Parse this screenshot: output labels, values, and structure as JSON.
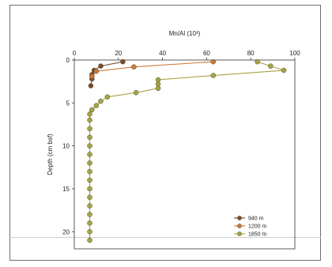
{
  "chart_data": {
    "type": "line",
    "title": "",
    "xlabel": "Mn/Al (10³)",
    "ylabel": "Depth (cm bsf)",
    "xlim": [
      0,
      100
    ],
    "ylim": [
      22,
      0
    ],
    "x_axis_position": "top",
    "y_inverted": true,
    "grid": false,
    "xticks": [
      "0",
      "20",
      "40",
      "60",
      "80",
      "100"
    ],
    "yticks": [
      "0",
      "5",
      "10",
      "15",
      "20"
    ],
    "legend_position": "bottom-right",
    "series": [
      {
        "name": "940 m",
        "color": "#7a4a2a",
        "points": [
          {
            "x": 22,
            "y": 0.2
          },
          {
            "x": 12,
            "y": 0.7
          },
          {
            "x": 9,
            "y": 1.2
          },
          {
            "x": 8,
            "y": 1.7
          },
          {
            "x": 8,
            "y": 2.2
          },
          {
            "x": 7.5,
            "y": 3
          }
        ]
      },
      {
        "name": "1200 m",
        "color": "#cc7a3c",
        "points": [
          {
            "x": 63,
            "y": 0.2
          },
          {
            "x": 27,
            "y": 0.8
          },
          {
            "x": 10,
            "y": 1.3
          },
          {
            "x": 8,
            "y": 1.9
          }
        ]
      },
      {
        "name": "1850 m",
        "color": "#a8a345",
        "points": [
          {
            "x": 83,
            "y": 0.2
          },
          {
            "x": 89,
            "y": 0.7
          },
          {
            "x": 95,
            "y": 1.2
          },
          {
            "x": 63,
            "y": 1.8
          },
          {
            "x": 38,
            "y": 2.3
          },
          {
            "x": 38,
            "y": 2.8
          },
          {
            "x": 38,
            "y": 3.3
          },
          {
            "x": 28,
            "y": 3.8
          },
          {
            "x": 15,
            "y": 4.3
          },
          {
            "x": 12,
            "y": 4.8
          },
          {
            "x": 10,
            "y": 5.3
          },
          {
            "x": 8,
            "y": 5.8
          },
          {
            "x": 7,
            "y": 6.3
          },
          {
            "x": 7,
            "y": 7
          },
          {
            "x": 7,
            "y": 8
          },
          {
            "x": 7,
            "y": 9
          },
          {
            "x": 7,
            "y": 10
          },
          {
            "x": 7,
            "y": 11
          },
          {
            "x": 7,
            "y": 12
          },
          {
            "x": 7,
            "y": 13
          },
          {
            "x": 7,
            "y": 14
          },
          {
            "x": 7,
            "y": 15
          },
          {
            "x": 7,
            "y": 16
          },
          {
            "x": 7,
            "y": 17
          },
          {
            "x": 7,
            "y": 18
          },
          {
            "x": 7,
            "y": 19
          },
          {
            "x": 7,
            "y": 20
          },
          {
            "x": 7,
            "y": 21
          }
        ]
      }
    ]
  }
}
